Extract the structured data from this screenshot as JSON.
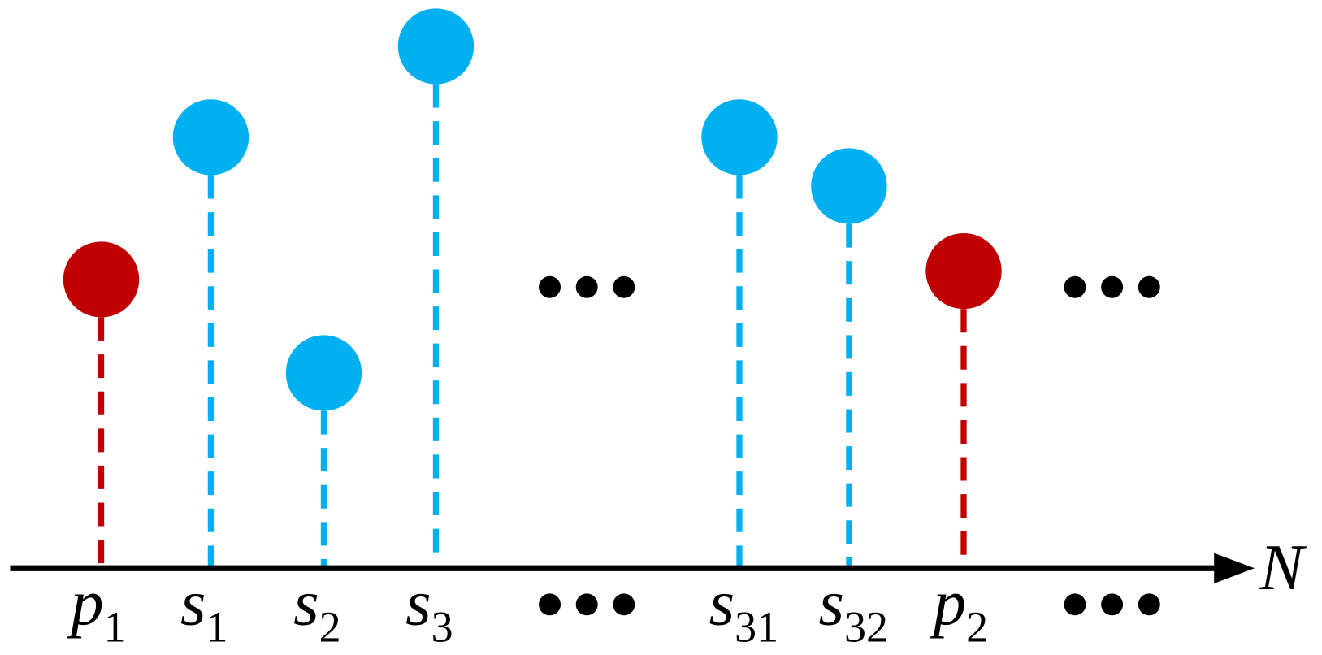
{
  "axis_label": "N",
  "nodes": [
    {
      "symbol": "p",
      "subscript": "1"
    },
    {
      "symbol": "s",
      "subscript": "1"
    },
    {
      "symbol": "s",
      "subscript": "2"
    },
    {
      "symbol": "s",
      "subscript": "3"
    },
    {
      "symbol": "s",
      "subscript": "31"
    },
    {
      "symbol": "s",
      "subscript": "32"
    },
    {
      "symbol": "p",
      "subscript": "2"
    }
  ]
}
